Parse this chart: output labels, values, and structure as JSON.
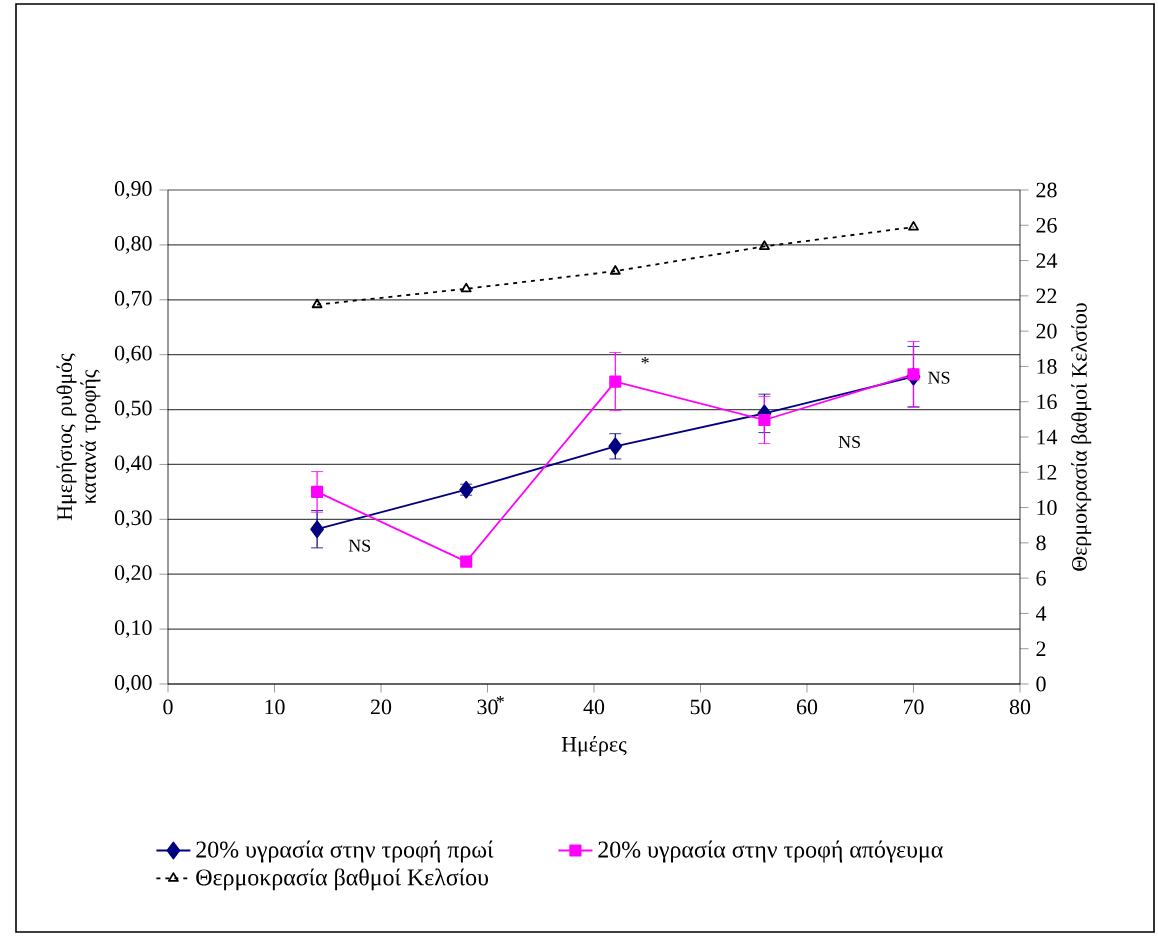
{
  "chart_data": {
    "type": "line",
    "xlabel": "Ημέρες",
    "ylabel": "Ημερήσιος ρυθμός κατανά τροφής",
    "y2label": "Θερμοκρασία βαθμοί Κελσίου",
    "x": [
      14,
      28,
      42,
      56,
      70
    ],
    "series": [
      {
        "name": "20% υγρασία στην τροφή πρωί",
        "color": "#000080",
        "marker": "diamond",
        "line_style": "solid",
        "values": [
          0.282,
          0.354,
          0.433,
          0.493,
          0.56
        ],
        "errors": [
          0.034,
          0.01,
          0.023,
          0.035,
          0.055
        ]
      },
      {
        "name": "20% υγρασία στην τροφή απόγευμα",
        "color": "#ff00ff",
        "marker": "square",
        "line_style": "solid",
        "values": [
          0.35,
          0.223,
          0.551,
          0.481,
          0.564
        ],
        "errors": [
          0.037,
          0.005,
          0.053,
          0.043,
          0.06
        ]
      },
      {
        "name": "Θερμοκρασία βαθμοί Κελσίου",
        "color": "#000000",
        "marker": "triangle",
        "line_style": "dotted",
        "axis": "y2",
        "values": [
          21.5,
          22.4,
          23.4,
          24.8,
          25.9
        ]
      }
    ],
    "xlim": [
      0,
      80
    ],
    "xticks": [
      0,
      10,
      20,
      30,
      40,
      50,
      60,
      70,
      80
    ],
    "ylim": [
      0,
      0.9
    ],
    "yticks": [
      {
        "value": 0,
        "label": "0,00"
      },
      {
        "value": 0.1,
        "label": "0,10"
      },
      {
        "value": 0.2,
        "label": "0,20"
      },
      {
        "value": 0.3,
        "label": "0,30"
      },
      {
        "value": 0.4,
        "label": "0,40"
      },
      {
        "value": 0.5,
        "label": "0,50"
      },
      {
        "value": 0.6,
        "label": "0,60"
      },
      {
        "value": 0.7,
        "label": "0,70"
      },
      {
        "value": 0.8,
        "label": "0,80"
      },
      {
        "value": 0.9,
        "label": "0,90"
      }
    ],
    "y2lim": [
      0,
      28
    ],
    "y2ticks": [
      0,
      2,
      4,
      6,
      8,
      10,
      12,
      14,
      16,
      18,
      20,
      22,
      24,
      26,
      28
    ],
    "grid": "y",
    "legend": "bottom",
    "annotations": [
      "NS",
      "NS",
      "NS",
      "*",
      "*"
    ]
  }
}
